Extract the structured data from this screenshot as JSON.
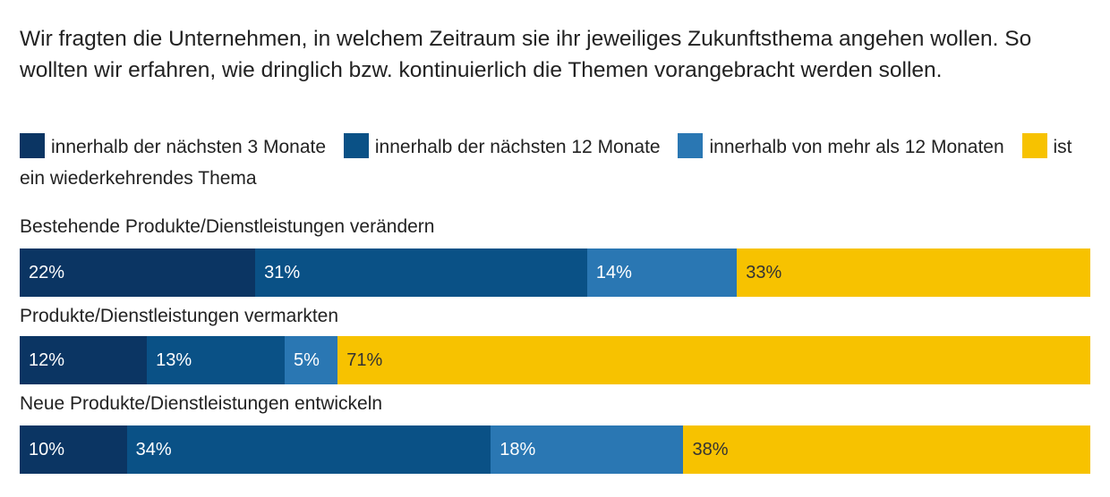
{
  "description": "Wir fragten die Unternehmen, in welchem Zeitraum sie ihr jeweiliges Zukunftsthema angehen wollen. So wollten wir erfahren, wie dringlich bzw. kontinuierlich die Themen vorangebracht werden sollen.",
  "colors": {
    "s1": "#0b3563",
    "s2": "#0a5186",
    "s3": "#2a77b3",
    "s4": "#f7c200",
    "label_light": "#ffffff",
    "label_dark": "#333333"
  },
  "chart_data": {
    "type": "bar",
    "orientation": "horizontal",
    "stacked": true,
    "normalized": true,
    "categories": [
      "Bestehende Produkte/Dienstleistungen verändern",
      "Produkte/Dienstleistungen vermarkten",
      "Neue Produkte/Dienstleistungen entwickeln"
    ],
    "series": [
      {
        "name": "innerhalb der nächsten 3 Monate",
        "values": [
          22,
          12,
          10
        ]
      },
      {
        "name": "innerhalb der nächsten 12 Monate",
        "values": [
          31,
          13,
          34
        ]
      },
      {
        "name": "innerhalb von mehr als 12 Monaten",
        "values": [
          14,
          5,
          18
        ]
      },
      {
        "name": "ist ein wiederkehrendes Thema",
        "values": [
          33,
          71,
          38
        ]
      }
    ],
    "value_suffix": "%",
    "legend_position": "top",
    "grid": false
  }
}
